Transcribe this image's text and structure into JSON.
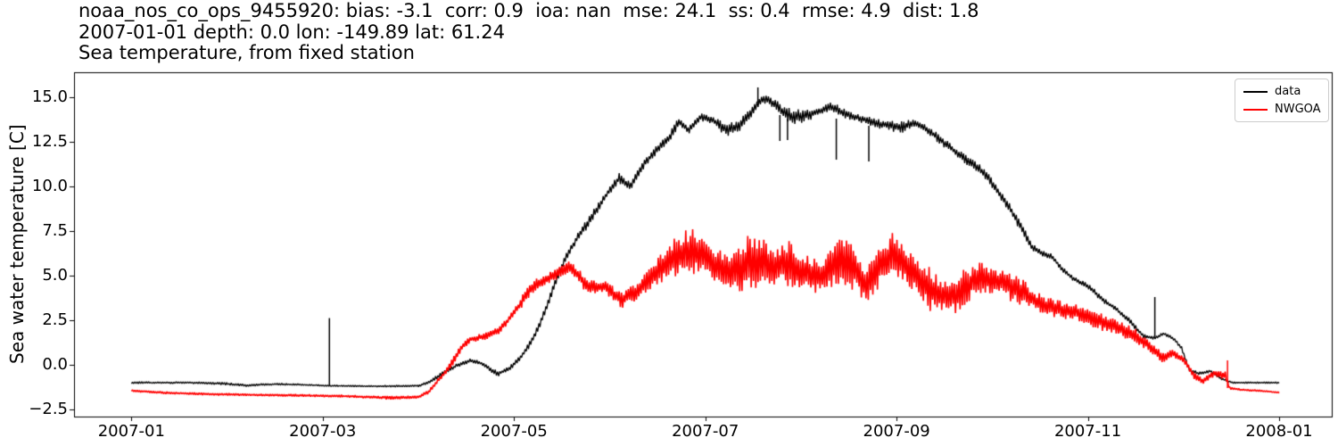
{
  "title": {
    "line1": "noaa_nos_co_ops_9455920: bias: -3.1  corr: 0.9  ioa: nan  mse: 24.1  ss: 0.4  rmse: 4.9  dist: 1.8",
    "line2": "2007-01-01 depth: 0.0 lon: -149.89 lat: 61.24",
    "line3": "Sea temperature, from fixed station"
  },
  "axes": {
    "ylabel": "Sea water temperature [C]",
    "x_tick_labels": [
      "2007-01",
      "2007-03",
      "2007-05",
      "2007-07",
      "2007-09",
      "2007-11",
      "2008-01"
    ],
    "y_tick_labels": [
      "−2.5",
      "0.0",
      "2.5",
      "5.0",
      "7.5",
      "10.0",
      "12.5",
      "15.0"
    ]
  },
  "legend": {
    "entries": [
      {
        "label": "data",
        "color": "#000000"
      },
      {
        "label": "NWGOA",
        "color": "#ff0000"
      }
    ]
  },
  "colors": {
    "background": "#ffffff",
    "axis": "#000000",
    "legend_border": "#cccccc"
  },
  "chart_data": {
    "type": "line",
    "title": "Sea temperature, from fixed station",
    "station": "noaa_nos_co_ops_9455920",
    "stats": {
      "bias": -3.1,
      "corr": 0.9,
      "ioa": "nan",
      "mse": 24.1,
      "ss": 0.4,
      "rmse": 4.9,
      "dist": 1.8
    },
    "start_date": "2007-01-01",
    "depth": 0.0,
    "lon": -149.89,
    "lat": 61.24,
    "ylabel": "Sea water temperature [C]",
    "x_unit": "months since 2007-01-01",
    "xlim": [
      -0.6,
      12.55
    ],
    "ylim": [
      -2.9,
      16.4
    ],
    "x_ticks": [
      0,
      2,
      4,
      6,
      8,
      10,
      12
    ],
    "y_ticks": [
      -2.5,
      0,
      2.5,
      5,
      7.5,
      10,
      12.5,
      15
    ],
    "grid": false,
    "legend_position": "upper right",
    "series": [
      {
        "name": "data",
        "color": "#000000",
        "width": 1.3,
        "points_format": [
          "month",
          "center_value_C",
          "oscillation_amplitude_C"
        ],
        "points": [
          [
            0.0,
            -1.0,
            0.06
          ],
          [
            0.6,
            -1.0,
            0.06
          ],
          [
            0.95,
            -1.05,
            0.08
          ],
          [
            1.2,
            -1.15,
            0.08
          ],
          [
            1.5,
            -1.08,
            0.06
          ],
          [
            1.8,
            -1.12,
            0.05
          ],
          [
            2.1,
            -1.18,
            0.05
          ],
          [
            2.6,
            -1.2,
            0.05
          ],
          [
            3.0,
            -1.18,
            0.08
          ],
          [
            3.12,
            -0.95,
            0.12
          ],
          [
            3.25,
            -0.5,
            0.15
          ],
          [
            3.4,
            -0.05,
            0.15
          ],
          [
            3.55,
            0.25,
            0.18
          ],
          [
            3.65,
            0.1,
            0.15
          ],
          [
            3.83,
            -0.5,
            0.15
          ],
          [
            3.95,
            -0.2,
            0.18
          ],
          [
            4.05,
            0.3,
            0.2
          ],
          [
            4.15,
            1.0,
            0.22
          ],
          [
            4.25,
            2.0,
            0.25
          ],
          [
            4.35,
            3.4,
            0.3
          ],
          [
            4.45,
            4.9,
            0.3
          ],
          [
            4.55,
            6.1,
            0.3
          ],
          [
            4.65,
            7.0,
            0.3
          ],
          [
            4.75,
            7.8,
            0.3
          ],
          [
            4.88,
            8.8,
            0.3
          ],
          [
            5.0,
            9.8,
            0.3
          ],
          [
            5.1,
            10.45,
            0.35
          ],
          [
            5.22,
            10.0,
            0.3
          ],
          [
            5.35,
            11.2,
            0.3
          ],
          [
            5.5,
            12.1,
            0.3
          ],
          [
            5.62,
            12.7,
            0.35
          ],
          [
            5.73,
            13.7,
            0.35
          ],
          [
            5.82,
            13.1,
            0.3
          ],
          [
            5.95,
            13.9,
            0.3
          ],
          [
            6.08,
            13.7,
            0.35
          ],
          [
            6.22,
            13.15,
            0.45
          ],
          [
            6.35,
            13.4,
            0.4
          ],
          [
            6.5,
            14.3,
            0.35
          ],
          [
            6.6,
            14.95,
            0.35
          ],
          [
            6.7,
            14.7,
            0.35
          ],
          [
            6.8,
            14.2,
            0.5
          ],
          [
            6.92,
            13.9,
            0.5
          ],
          [
            7.05,
            14.0,
            0.4
          ],
          [
            7.18,
            14.2,
            0.35
          ],
          [
            7.32,
            14.5,
            0.35
          ],
          [
            7.43,
            14.15,
            0.3
          ],
          [
            7.55,
            13.9,
            0.3
          ],
          [
            7.68,
            13.75,
            0.35
          ],
          [
            7.8,
            13.5,
            0.35
          ],
          [
            7.93,
            13.45,
            0.35
          ],
          [
            8.05,
            13.3,
            0.35
          ],
          [
            8.2,
            13.6,
            0.3
          ],
          [
            8.33,
            13.15,
            0.3
          ],
          [
            8.47,
            12.55,
            0.3
          ],
          [
            8.6,
            12.0,
            0.3
          ],
          [
            8.73,
            11.5,
            0.35
          ],
          [
            8.86,
            11.0,
            0.35
          ],
          [
            8.97,
            10.4,
            0.3
          ],
          [
            9.07,
            9.6,
            0.3
          ],
          [
            9.17,
            8.9,
            0.3
          ],
          [
            9.3,
            7.7,
            0.3
          ],
          [
            9.42,
            6.6,
            0.25
          ],
          [
            9.52,
            6.25,
            0.2
          ],
          [
            9.62,
            6.1,
            0.2
          ],
          [
            9.74,
            5.3,
            0.2
          ],
          [
            9.86,
            4.8,
            0.2
          ],
          [
            10.0,
            4.4,
            0.2
          ],
          [
            10.15,
            3.7,
            0.2
          ],
          [
            10.3,
            3.1,
            0.2
          ],
          [
            10.45,
            2.4,
            0.18
          ],
          [
            10.58,
            1.6,
            0.15
          ],
          [
            10.7,
            1.5,
            0.15
          ],
          [
            10.8,
            1.75,
            0.15
          ],
          [
            10.9,
            1.45,
            0.15
          ],
          [
            10.98,
            0.95,
            0.12
          ],
          [
            11.06,
            -0.3,
            0.1
          ],
          [
            11.16,
            -0.5,
            0.1
          ],
          [
            11.28,
            -0.35,
            0.1
          ],
          [
            11.4,
            -0.8,
            0.08
          ],
          [
            11.52,
            -1.0,
            0.06
          ],
          [
            12.0,
            -1.0,
            0.06
          ]
        ],
        "spikes_format": [
          "month",
          "from_value_C",
          "to_value_C"
        ],
        "spikes": [
          [
            2.07,
            -1.15,
            2.62
          ],
          [
            6.55,
            14.7,
            15.55
          ],
          [
            6.78,
            14.0,
            12.55
          ],
          [
            6.86,
            13.8,
            12.6
          ],
          [
            7.37,
            13.8,
            11.5
          ],
          [
            7.71,
            13.4,
            11.4
          ],
          [
            10.7,
            1.6,
            3.8
          ]
        ]
      },
      {
        "name": "NWGOA",
        "color": "#ff0000",
        "width": 1.6,
        "points_format": [
          "month",
          "center_value_C",
          "oscillation_amplitude_C"
        ],
        "points": [
          [
            0.0,
            -1.45,
            0.07
          ],
          [
            0.4,
            -1.58,
            0.07
          ],
          [
            0.9,
            -1.65,
            0.07
          ],
          [
            1.5,
            -1.7,
            0.07
          ],
          [
            2.2,
            -1.75,
            0.09
          ],
          [
            2.7,
            -1.85,
            0.1
          ],
          [
            3.0,
            -1.8,
            0.1
          ],
          [
            3.1,
            -1.55,
            0.15
          ],
          [
            3.22,
            -0.8,
            0.2
          ],
          [
            3.33,
            -0.1,
            0.22
          ],
          [
            3.45,
            1.0,
            0.25
          ],
          [
            3.55,
            1.45,
            0.28
          ],
          [
            3.7,
            1.6,
            0.28
          ],
          [
            3.85,
            1.95,
            0.28
          ],
          [
            4.0,
            2.9,
            0.32
          ],
          [
            4.18,
            4.3,
            0.38
          ],
          [
            4.4,
            5.0,
            0.42
          ],
          [
            4.6,
            5.5,
            0.45
          ],
          [
            4.78,
            4.3,
            0.5
          ],
          [
            4.95,
            4.4,
            0.45
          ],
          [
            5.12,
            3.6,
            0.5
          ],
          [
            5.3,
            4.2,
            0.6
          ],
          [
            5.5,
            5.2,
            0.8
          ],
          [
            5.7,
            6.1,
            1.2
          ],
          [
            5.88,
            6.4,
            1.6
          ],
          [
            6.05,
            5.8,
            1.3
          ],
          [
            6.22,
            5.1,
            1.1
          ],
          [
            6.42,
            5.6,
            1.7
          ],
          [
            6.58,
            5.8,
            1.5
          ],
          [
            6.72,
            5.6,
            1.2
          ],
          [
            6.88,
            5.6,
            1.8
          ],
          [
            7.05,
            5.2,
            1.3
          ],
          [
            7.22,
            4.9,
            1.0
          ],
          [
            7.4,
            5.9,
            1.5
          ],
          [
            7.53,
            5.6,
            1.4
          ],
          [
            7.67,
            4.4,
            1.3
          ],
          [
            7.83,
            5.5,
            1.4
          ],
          [
            7.98,
            6.2,
            1.6
          ],
          [
            8.13,
            5.4,
            1.3
          ],
          [
            8.3,
            4.5,
            1.2
          ],
          [
            8.45,
            3.9,
            1.5
          ],
          [
            8.6,
            3.9,
            1.3
          ],
          [
            8.75,
            4.5,
            1.1
          ],
          [
            8.9,
            4.9,
            1.0
          ],
          [
            9.1,
            4.6,
            0.9
          ],
          [
            9.3,
            4.1,
            0.8
          ],
          [
            9.5,
            3.4,
            0.7
          ],
          [
            9.7,
            3.1,
            0.6
          ],
          [
            9.9,
            2.9,
            0.6
          ],
          [
            10.1,
            2.5,
            0.5
          ],
          [
            10.3,
            2.1,
            0.5
          ],
          [
            10.5,
            1.6,
            0.45
          ],
          [
            10.65,
            1.05,
            0.4
          ],
          [
            10.78,
            0.4,
            0.35
          ],
          [
            10.88,
            0.65,
            0.3
          ],
          [
            11.0,
            0.3,
            0.3
          ],
          [
            11.1,
            -0.55,
            0.25
          ],
          [
            11.2,
            -0.95,
            0.25
          ],
          [
            11.32,
            -0.45,
            0.3
          ],
          [
            11.44,
            -0.6,
            0.3
          ],
          [
            11.48,
            -1.3,
            0.1
          ],
          [
            11.6,
            -1.4,
            0.06
          ],
          [
            11.8,
            -1.45,
            0.05
          ],
          [
            12.0,
            -1.55,
            0.05
          ]
        ],
        "spikes_format": [
          "month",
          "from_value_C",
          "to_value_C"
        ],
        "spikes": [
          [
            11.46,
            -1.3,
            0.25
          ]
        ]
      }
    ]
  }
}
